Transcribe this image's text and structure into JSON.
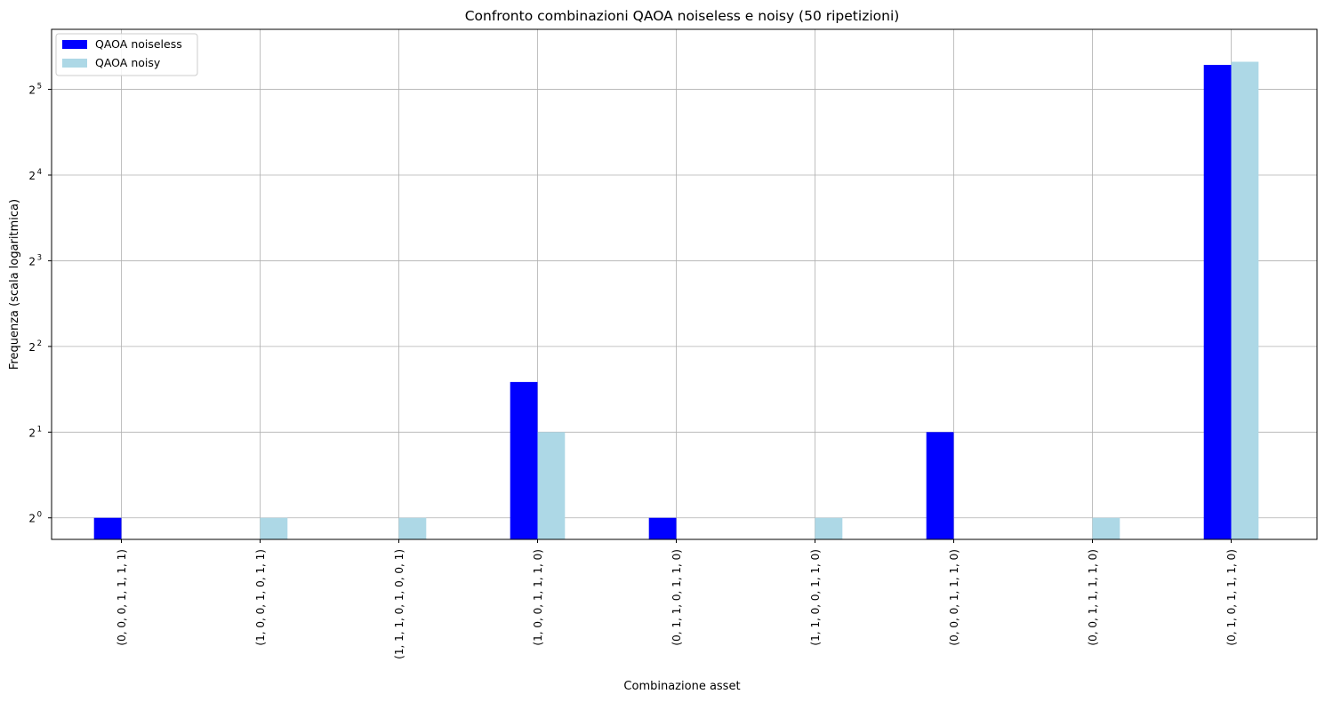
{
  "chart_data": {
    "type": "bar",
    "title": "Confronto combinazioni QAOA noiseless e noisy (50 ripetizioni)",
    "xlabel": "Combinazione asset",
    "ylabel": "Frequenza (scala logaritmica)",
    "yscale": "log2",
    "ylim": [
      0.84,
      52
    ],
    "yticks": [
      1,
      2,
      4,
      8,
      16,
      32
    ],
    "ytick_labels": [
      {
        "base": "2",
        "exp": "0"
      },
      {
        "base": "2",
        "exp": "1"
      },
      {
        "base": "2",
        "exp": "2"
      },
      {
        "base": "2",
        "exp": "3"
      },
      {
        "base": "2",
        "exp": "4"
      },
      {
        "base": "2",
        "exp": "5"
      }
    ],
    "grid": true,
    "legend_position": "top-left",
    "categories": [
      "(0, 0, 0, 1, 1, 1, 1)",
      "(1, 0, 0, 1, 0, 1, 1)",
      "(1, 1, 1, 0, 1, 0, 0, 1)",
      "(1, 0, 0, 1, 1, 1, 0)",
      "(0, 1, 1, 0, 1, 1, 0)",
      "(1, 1, 0, 0, 1, 1, 0)",
      "(0, 0, 0, 1, 1, 1, 0)",
      "(0, 0, 1, 1, 1, 1, 0)",
      "(0, 1, 0, 1, 1, 1, 0)"
    ],
    "series": [
      {
        "name": "QAOA noiseless",
        "color": "#0000ff",
        "values": [
          1,
          0,
          0,
          3,
          1,
          0,
          2,
          0,
          39
        ]
      },
      {
        "name": "QAOA noisy",
        "color": "#add8e6",
        "values": [
          0,
          1,
          1,
          2,
          0,
          1,
          0,
          1,
          40
        ]
      }
    ]
  }
}
